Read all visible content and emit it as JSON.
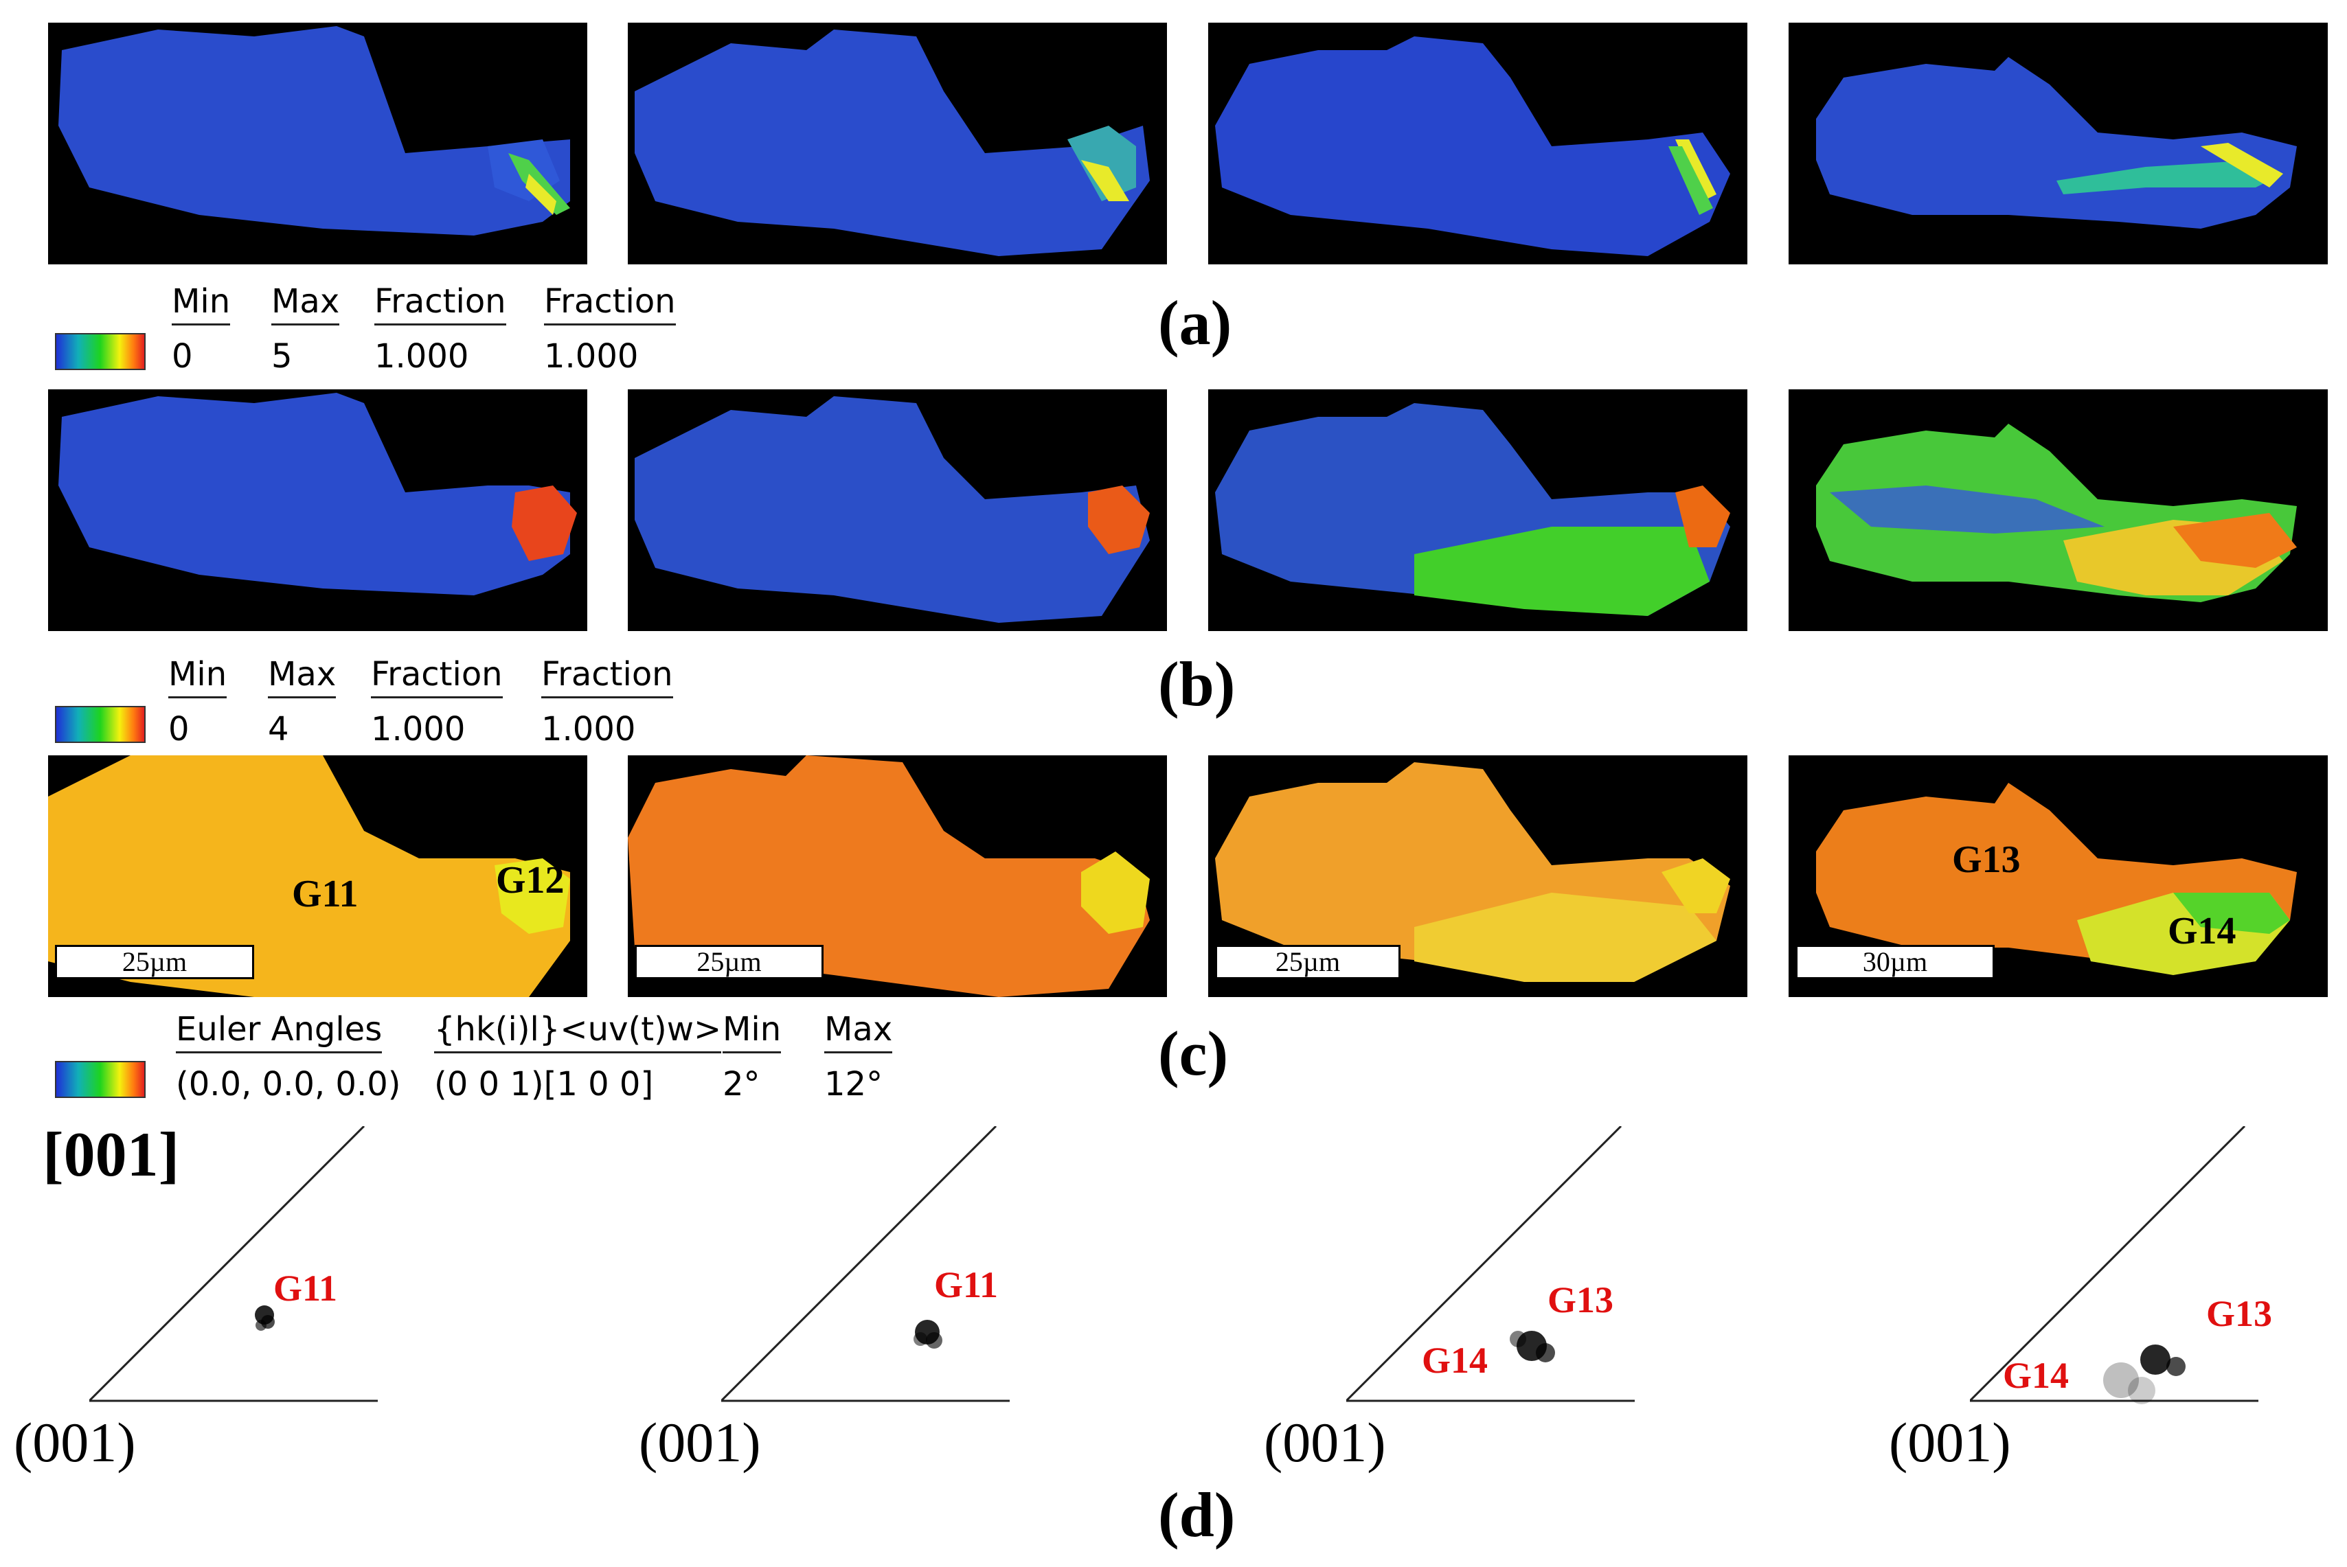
{
  "rows": {
    "a": {
      "label": "(a)"
    },
    "b": {
      "label": "(b)"
    },
    "c": {
      "label": "(c)"
    },
    "d": {
      "label": "(d)"
    }
  },
  "legend_a": {
    "h_min": "Min",
    "h_max": "Max",
    "h_frac1": "Fraction",
    "h_frac2": "Fraction",
    "v_min": "0",
    "v_max": "5",
    "v_frac1": "1.000",
    "v_frac2": "1.000"
  },
  "legend_b": {
    "h_min": "Min",
    "h_max": "Max",
    "h_frac1": "Fraction",
    "h_frac2": "Fraction",
    "v_min": "0",
    "v_max": "4",
    "v_frac1": "1.000",
    "v_frac2": "1.000"
  },
  "legend_c": {
    "h_euler": "Euler Angles",
    "h_hkl": "{hk(i)l}<uv(t)w>",
    "h_min": "Min",
    "h_max": "Max",
    "v_euler": "(0.0, 0.0, 0.0)",
    "v_hkl": "(0 0 1)[1 0 0]",
    "v_min": "2°",
    "v_max": "12°"
  },
  "scalebars": [
    "25µm",
    "25µm",
    "25µm",
    "30µm"
  ],
  "grain_labels": {
    "g11": "G11",
    "g12": "G12",
    "g13": "G13",
    "g14": "G14"
  },
  "ipf": {
    "direction": "[001]",
    "axis": "(001)",
    "labels": [
      {
        "a": "G11"
      },
      {
        "a": "G11"
      },
      {
        "a": "G13",
        "b": "G14"
      },
      {
        "a": "G13",
        "b": "G14"
      }
    ]
  },
  "colors": {
    "blue": "#2743c8",
    "green": "#2fd02a",
    "orange": "#f0901a",
    "red": "#e83a1a",
    "ipf_label": "#e01010"
  }
}
